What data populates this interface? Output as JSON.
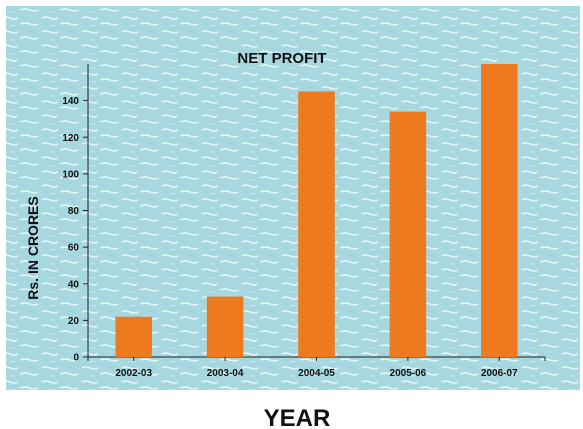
{
  "chart_data": {
    "type": "bar",
    "title": "NET PROFIT",
    "categories": [
      "2002-03",
      "2003-04",
      "2004-05",
      "2005-06",
      "2006-07"
    ],
    "values": [
      22,
      33,
      145,
      134,
      160
    ],
    "ylabel": "Rs. IN CRORES",
    "xlabel": "YEAR",
    "ylim": [
      0,
      160
    ],
    "yticks": [
      0,
      20,
      40,
      60,
      80,
      100,
      120,
      140
    ],
    "grid": false,
    "legend": "none",
    "bar_color": "#EE7A1F",
    "background_color": "#A8D8DF"
  }
}
